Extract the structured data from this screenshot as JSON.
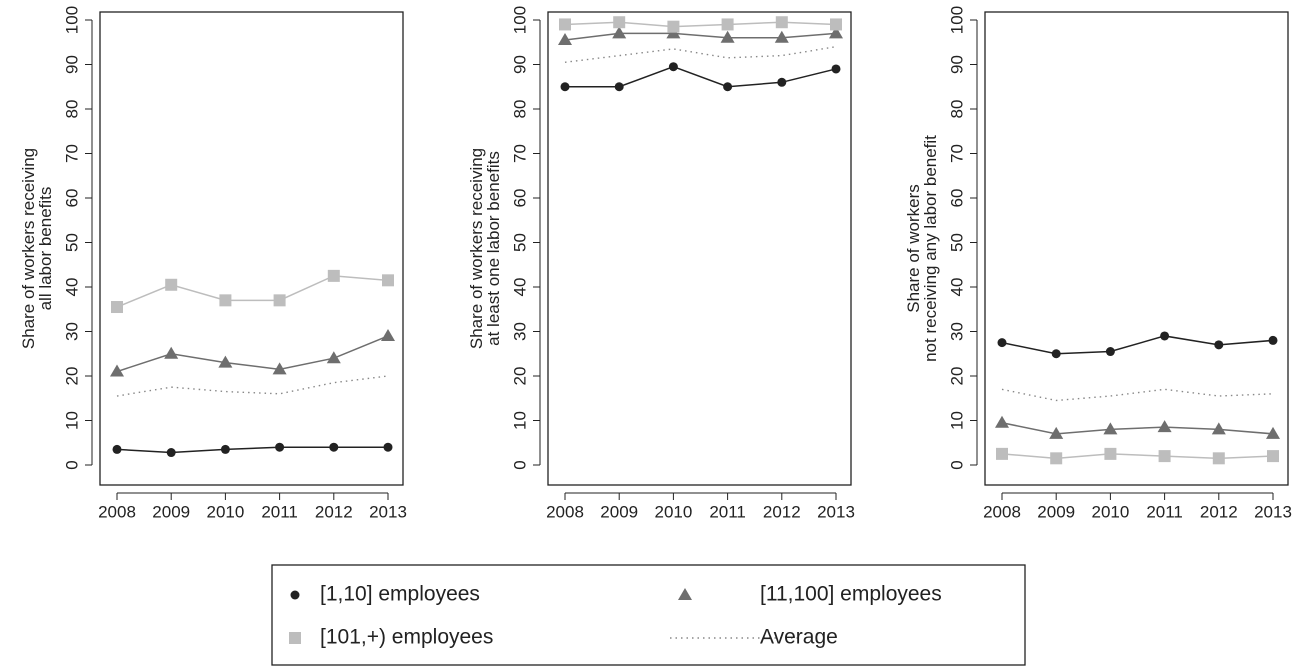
{
  "chart_data": [
    {
      "type": "line",
      "ylabel": [
        "Share of workers receiving",
        "all labor benefits"
      ],
      "x": [
        2008,
        2009,
        2010,
        2011,
        2012,
        2013
      ],
      "xlim": [
        2008,
        2013
      ],
      "xticks": [
        2008,
        2009,
        2010,
        2011,
        2012,
        2013
      ],
      "ylim": [
        0,
        100
      ],
      "yticks": [
        0,
        10,
        20,
        30,
        40,
        50,
        60,
        70,
        80,
        90,
        100
      ],
      "series": [
        {
          "name": "[1,10] employees",
          "color": "#222222",
          "marker": "circle",
          "values": [
            3.5,
            2.8,
            3.5,
            4,
            4,
            4
          ]
        },
        {
          "name": "[11,100] employees",
          "color": "#6e6e6e",
          "marker": "triangle",
          "values": [
            21,
            25,
            23,
            21.5,
            24,
            29
          ]
        },
        {
          "name": "[101,+) employees",
          "color": "#bdbdbd",
          "marker": "square",
          "values": [
            35.5,
            40.5,
            37,
            37,
            42.5,
            41.5
          ]
        },
        {
          "name": "Average",
          "color": "#888888",
          "marker": "dotted",
          "values": [
            15.5,
            17.5,
            16.5,
            16,
            18.5,
            20
          ]
        }
      ]
    },
    {
      "type": "line",
      "ylabel": [
        "Share of workers receiving",
        "at least one labor benefits"
      ],
      "x": [
        2008,
        2009,
        2010,
        2011,
        2012,
        2013
      ],
      "xlim": [
        2008,
        2013
      ],
      "xticks": [
        2008,
        2009,
        2010,
        2011,
        2012,
        2013
      ],
      "ylim": [
        0,
        100
      ],
      "yticks": [
        0,
        10,
        20,
        30,
        40,
        50,
        60,
        70,
        80,
        90,
        100
      ],
      "series": [
        {
          "name": "[1,10] employees",
          "color": "#222222",
          "marker": "circle",
          "values": [
            85,
            85,
            89.5,
            85,
            86,
            89
          ]
        },
        {
          "name": "[11,100] employees",
          "color": "#6e6e6e",
          "marker": "triangle",
          "values": [
            95.5,
            97,
            97,
            96,
            96,
            97
          ]
        },
        {
          "name": "[101,+) employees",
          "color": "#bdbdbd",
          "marker": "square",
          "values": [
            99,
            99.5,
            98.5,
            99,
            99.5,
            99
          ]
        },
        {
          "name": "Average",
          "color": "#888888",
          "marker": "dotted",
          "values": [
            90.5,
            92,
            93.5,
            91.5,
            92,
            94
          ]
        }
      ]
    },
    {
      "type": "line",
      "ylabel": [
        "Share of workers",
        "not receiving any labor benefit"
      ],
      "x": [
        2008,
        2009,
        2010,
        2011,
        2012,
        2013
      ],
      "xlim": [
        2008,
        2013
      ],
      "xticks": [
        2008,
        2009,
        2010,
        2011,
        2012,
        2013
      ],
      "ylim": [
        0,
        100
      ],
      "yticks": [
        0,
        10,
        20,
        30,
        40,
        50,
        60,
        70,
        80,
        90,
        100
      ],
      "series": [
        {
          "name": "[1,10] employees",
          "color": "#222222",
          "marker": "circle",
          "values": [
            27.5,
            25,
            25.5,
            29,
            27,
            28
          ]
        },
        {
          "name": "[11,100] employees",
          "color": "#6e6e6e",
          "marker": "triangle",
          "values": [
            9.5,
            7,
            8,
            8.5,
            8,
            7
          ]
        },
        {
          "name": "[101,+) employees",
          "color": "#bdbdbd",
          "marker": "square",
          "values": [
            2.5,
            1.5,
            2.5,
            2,
            1.5,
            2
          ]
        },
        {
          "name": "Average",
          "color": "#888888",
          "marker": "dotted",
          "values": [
            17,
            14.5,
            15.5,
            17,
            15.5,
            16
          ]
        }
      ]
    }
  ]
}
